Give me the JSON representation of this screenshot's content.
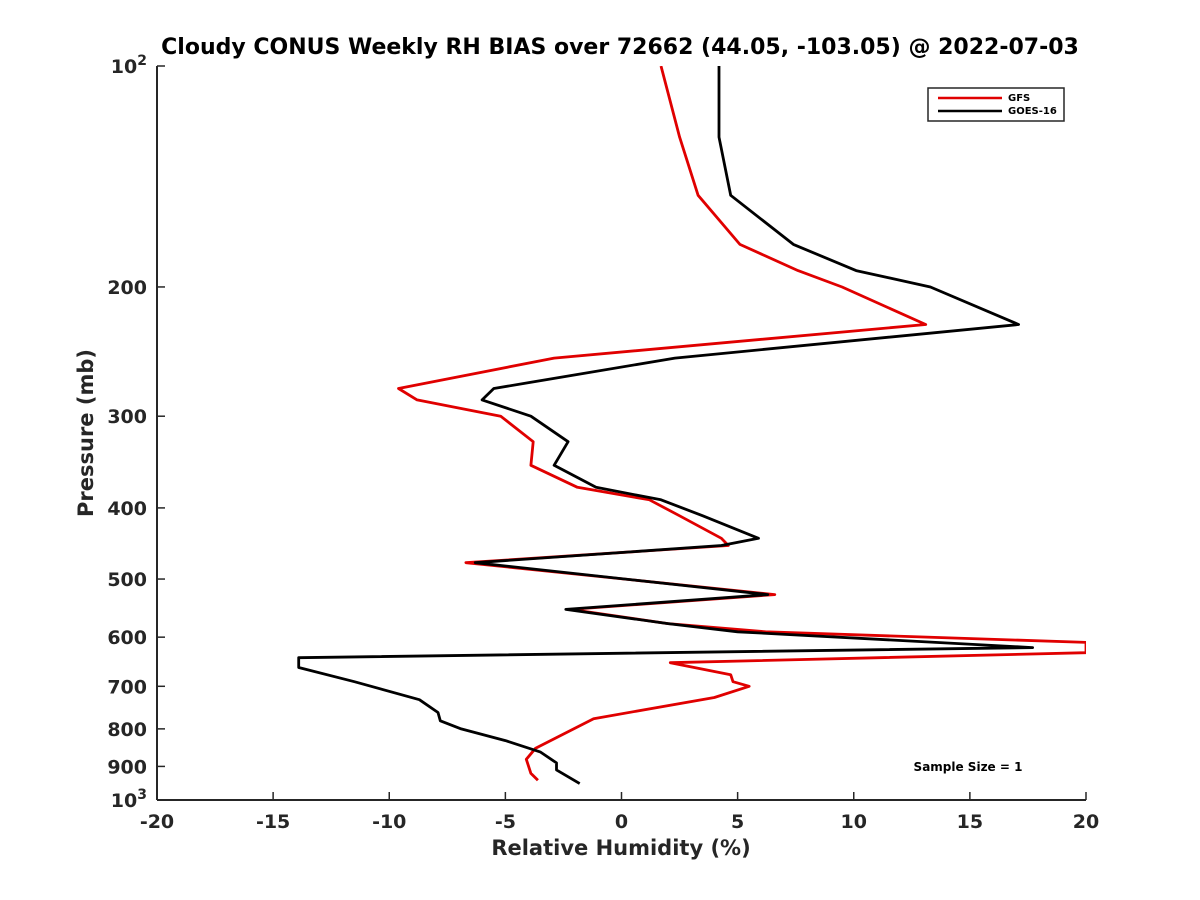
{
  "chart_data": {
    "type": "line",
    "title": "Cloudy CONUS Weekly RH BIAS over 72662 (44.05, -103.05) @ 2022-07-03",
    "xlabel": "Relative Humidity (%)",
    "ylabel": "Pressure (mb)",
    "xlim": [
      -20,
      20
    ],
    "ylim": [
      100,
      1000
    ],
    "y_scale": "log",
    "y_reversed": true,
    "x_ticks": [
      "-20",
      "-15",
      "-10",
      "-5",
      "0",
      "5",
      "10",
      "15",
      "20"
    ],
    "y_ticks": [
      {
        "value": 100,
        "base": "10",
        "exp": "2"
      },
      {
        "value": 200,
        "label": "200"
      },
      {
        "value": 300,
        "label": "300"
      },
      {
        "value": 400,
        "label": "400"
      },
      {
        "value": 500,
        "label": "500"
      },
      {
        "value": 600,
        "label": "600"
      },
      {
        "value": 700,
        "label": "700"
      },
      {
        "value": 800,
        "label": "800"
      },
      {
        "value": 900,
        "label": "900"
      },
      {
        "value": 1000,
        "base": "10",
        "exp": "3"
      }
    ],
    "grid": false,
    "legend_position": "top-right",
    "annotation": "Sample Size = 1",
    "series": [
      {
        "name": "GFS",
        "color": "#e00000",
        "points": [
          [
            1.7,
            100
          ],
          [
            2.5,
            125
          ],
          [
            3.3,
            150
          ],
          [
            5.1,
            175
          ],
          [
            7.6,
            190
          ],
          [
            9.5,
            200
          ],
          [
            13.1,
            225
          ],
          [
            -2.9,
            250
          ],
          [
            -9.6,
            275
          ],
          [
            -8.8,
            285
          ],
          [
            -5.2,
            300
          ],
          [
            -3.8,
            325
          ],
          [
            -3.9,
            350
          ],
          [
            -1.9,
            375
          ],
          [
            1.2,
            390
          ],
          [
            2.5,
            410
          ],
          [
            4.3,
            440
          ],
          [
            4.6,
            450
          ],
          [
            -6.7,
            475
          ],
          [
            6.6,
            525
          ],
          [
            -2.2,
            550
          ],
          [
            2.0,
            575
          ],
          [
            6.2,
            590
          ],
          [
            20,
            610
          ],
          [
            20,
            630
          ],
          [
            2.1,
            650
          ],
          [
            4.7,
            675
          ],
          [
            4.8,
            690
          ],
          [
            5.5,
            700
          ],
          [
            4.0,
            725
          ],
          [
            -1.2,
            775
          ],
          [
            -3.7,
            850
          ],
          [
            -4.1,
            880
          ],
          [
            -3.9,
            920
          ],
          [
            -3.6,
            940
          ]
        ]
      },
      {
        "name": "GOES-16",
        "color": "#000000",
        "points": [
          [
            4.2,
            100
          ],
          [
            4.2,
            125
          ],
          [
            4.7,
            150
          ],
          [
            7.4,
            175
          ],
          [
            10.1,
            190
          ],
          [
            13.3,
            200
          ],
          [
            17.1,
            225
          ],
          [
            2.3,
            250
          ],
          [
            -5.5,
            275
          ],
          [
            -6.0,
            285
          ],
          [
            -3.9,
            300
          ],
          [
            -2.3,
            325
          ],
          [
            -2.9,
            350
          ],
          [
            -1.1,
            375
          ],
          [
            1.7,
            390
          ],
          [
            3.5,
            410
          ],
          [
            5.9,
            440
          ],
          [
            4.3,
            450
          ],
          [
            -6.3,
            475
          ],
          [
            6.3,
            525
          ],
          [
            -2.4,
            550
          ],
          [
            2.0,
            575
          ],
          [
            5.0,
            590
          ],
          [
            17.7,
            620
          ],
          [
            -13.9,
            640
          ],
          [
            -13.9,
            660
          ],
          [
            -11.5,
            690
          ],
          [
            -8.7,
            730
          ],
          [
            -7.9,
            760
          ],
          [
            -7.8,
            780
          ],
          [
            -6.9,
            800
          ],
          [
            -5.0,
            830
          ],
          [
            -3.5,
            860
          ],
          [
            -2.8,
            890
          ],
          [
            -2.8,
            910
          ],
          [
            -1.8,
            950
          ]
        ]
      }
    ]
  }
}
